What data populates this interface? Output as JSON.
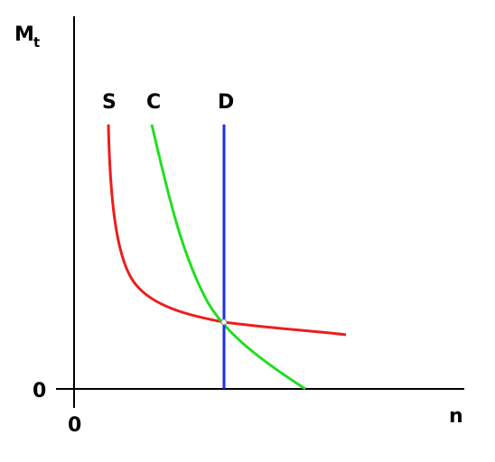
{
  "axes": {
    "y_label": "M",
    "y_label_subscript": "t",
    "x_label": "n",
    "y_origin": "0",
    "x_origin": "0"
  },
  "curves": [
    {
      "label": "S"
    },
    {
      "label": "C"
    },
    {
      "label": "D"
    }
  ]
}
